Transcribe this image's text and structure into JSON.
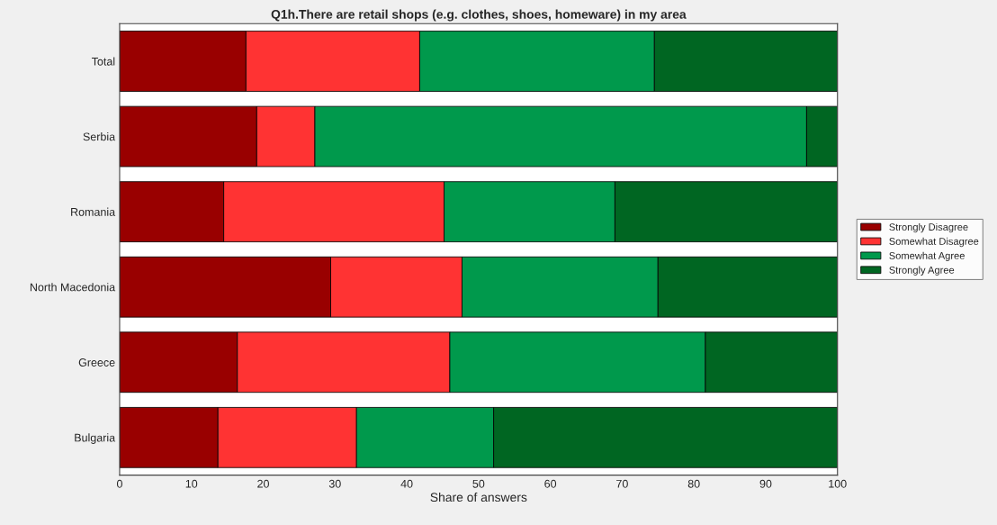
{
  "chart_data": {
    "type": "bar",
    "orientation": "horizontal",
    "stacked": true,
    "title": "Q1h.There are retail shops (e.g. clothes, shoes, homeware) in my area",
    "xlabel": "Share of answers",
    "categories": [
      "Total",
      "Serbia",
      "Romania",
      "North Macedonia",
      "Greece",
      "Bulgaria"
    ],
    "series": [
      {
        "name": "Strongly Disagree",
        "color": "#990000",
        "values": [
          17.6,
          19.1,
          14.5,
          29.4,
          16.4,
          13.7
        ]
      },
      {
        "name": "Somewhat Disagree",
        "color": "#ff3333",
        "values": [
          24.2,
          8.1,
          30.7,
          18.3,
          29.6,
          19.3
        ]
      },
      {
        "name": "Somewhat Agree",
        "color": "#00994c",
        "values": [
          32.7,
          68.5,
          23.8,
          27.3,
          35.6,
          19.1
        ]
      },
      {
        "name": "Strongly Agree",
        "color": "#006622",
        "values": [
          25.5,
          4.3,
          31.0,
          25.0,
          18.4,
          47.9
        ]
      }
    ],
    "xlim": [
      0,
      100
    ],
    "xticks": [
      0,
      10,
      20,
      30,
      40,
      50,
      60,
      70,
      80,
      90,
      100
    ],
    "legend": "right",
    "grid": false
  }
}
